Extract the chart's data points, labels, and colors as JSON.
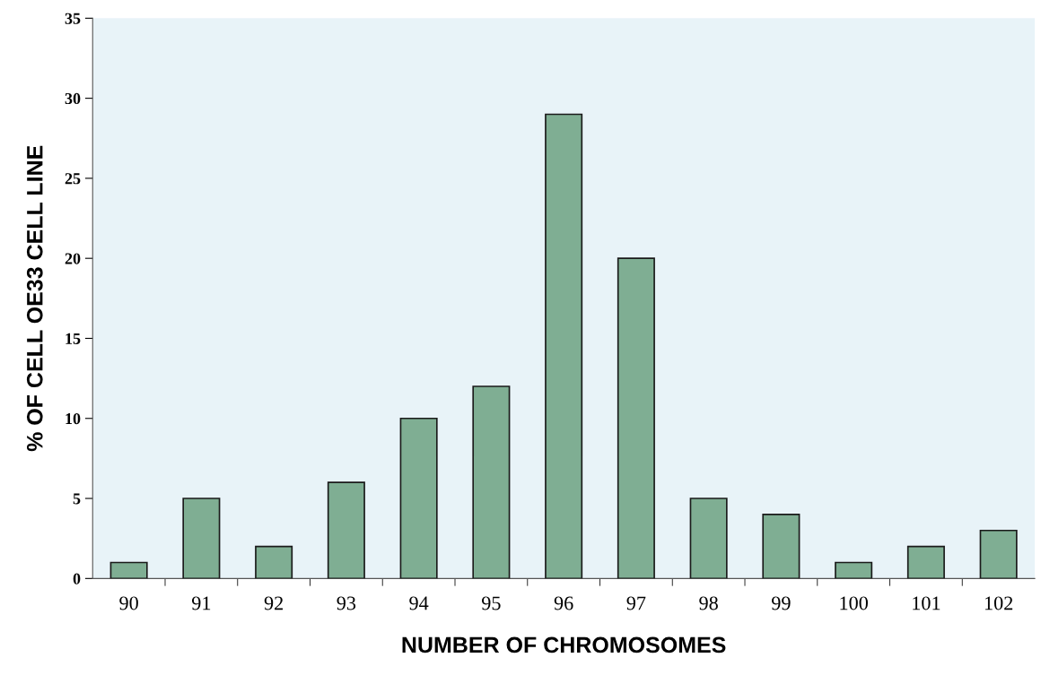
{
  "chart_data": {
    "type": "bar",
    "xlabel": "NUMBER OF CHROMOSOMES",
    "ylabel": "% OF CELL OE33 CELL LINE",
    "categories": [
      "90",
      "91",
      "92",
      "93",
      "94",
      "95",
      "96",
      "97",
      "98",
      "99",
      "100",
      "101",
      "102"
    ],
    "values": [
      1,
      5,
      2,
      6,
      10,
      12,
      29,
      20,
      5,
      4,
      1,
      2,
      3
    ],
    "color": "#7fae93",
    "ylim": [
      0,
      35
    ],
    "yticks": [
      0,
      5,
      10,
      15,
      20,
      25,
      30,
      35
    ],
    "grid": false,
    "legend": false
  }
}
